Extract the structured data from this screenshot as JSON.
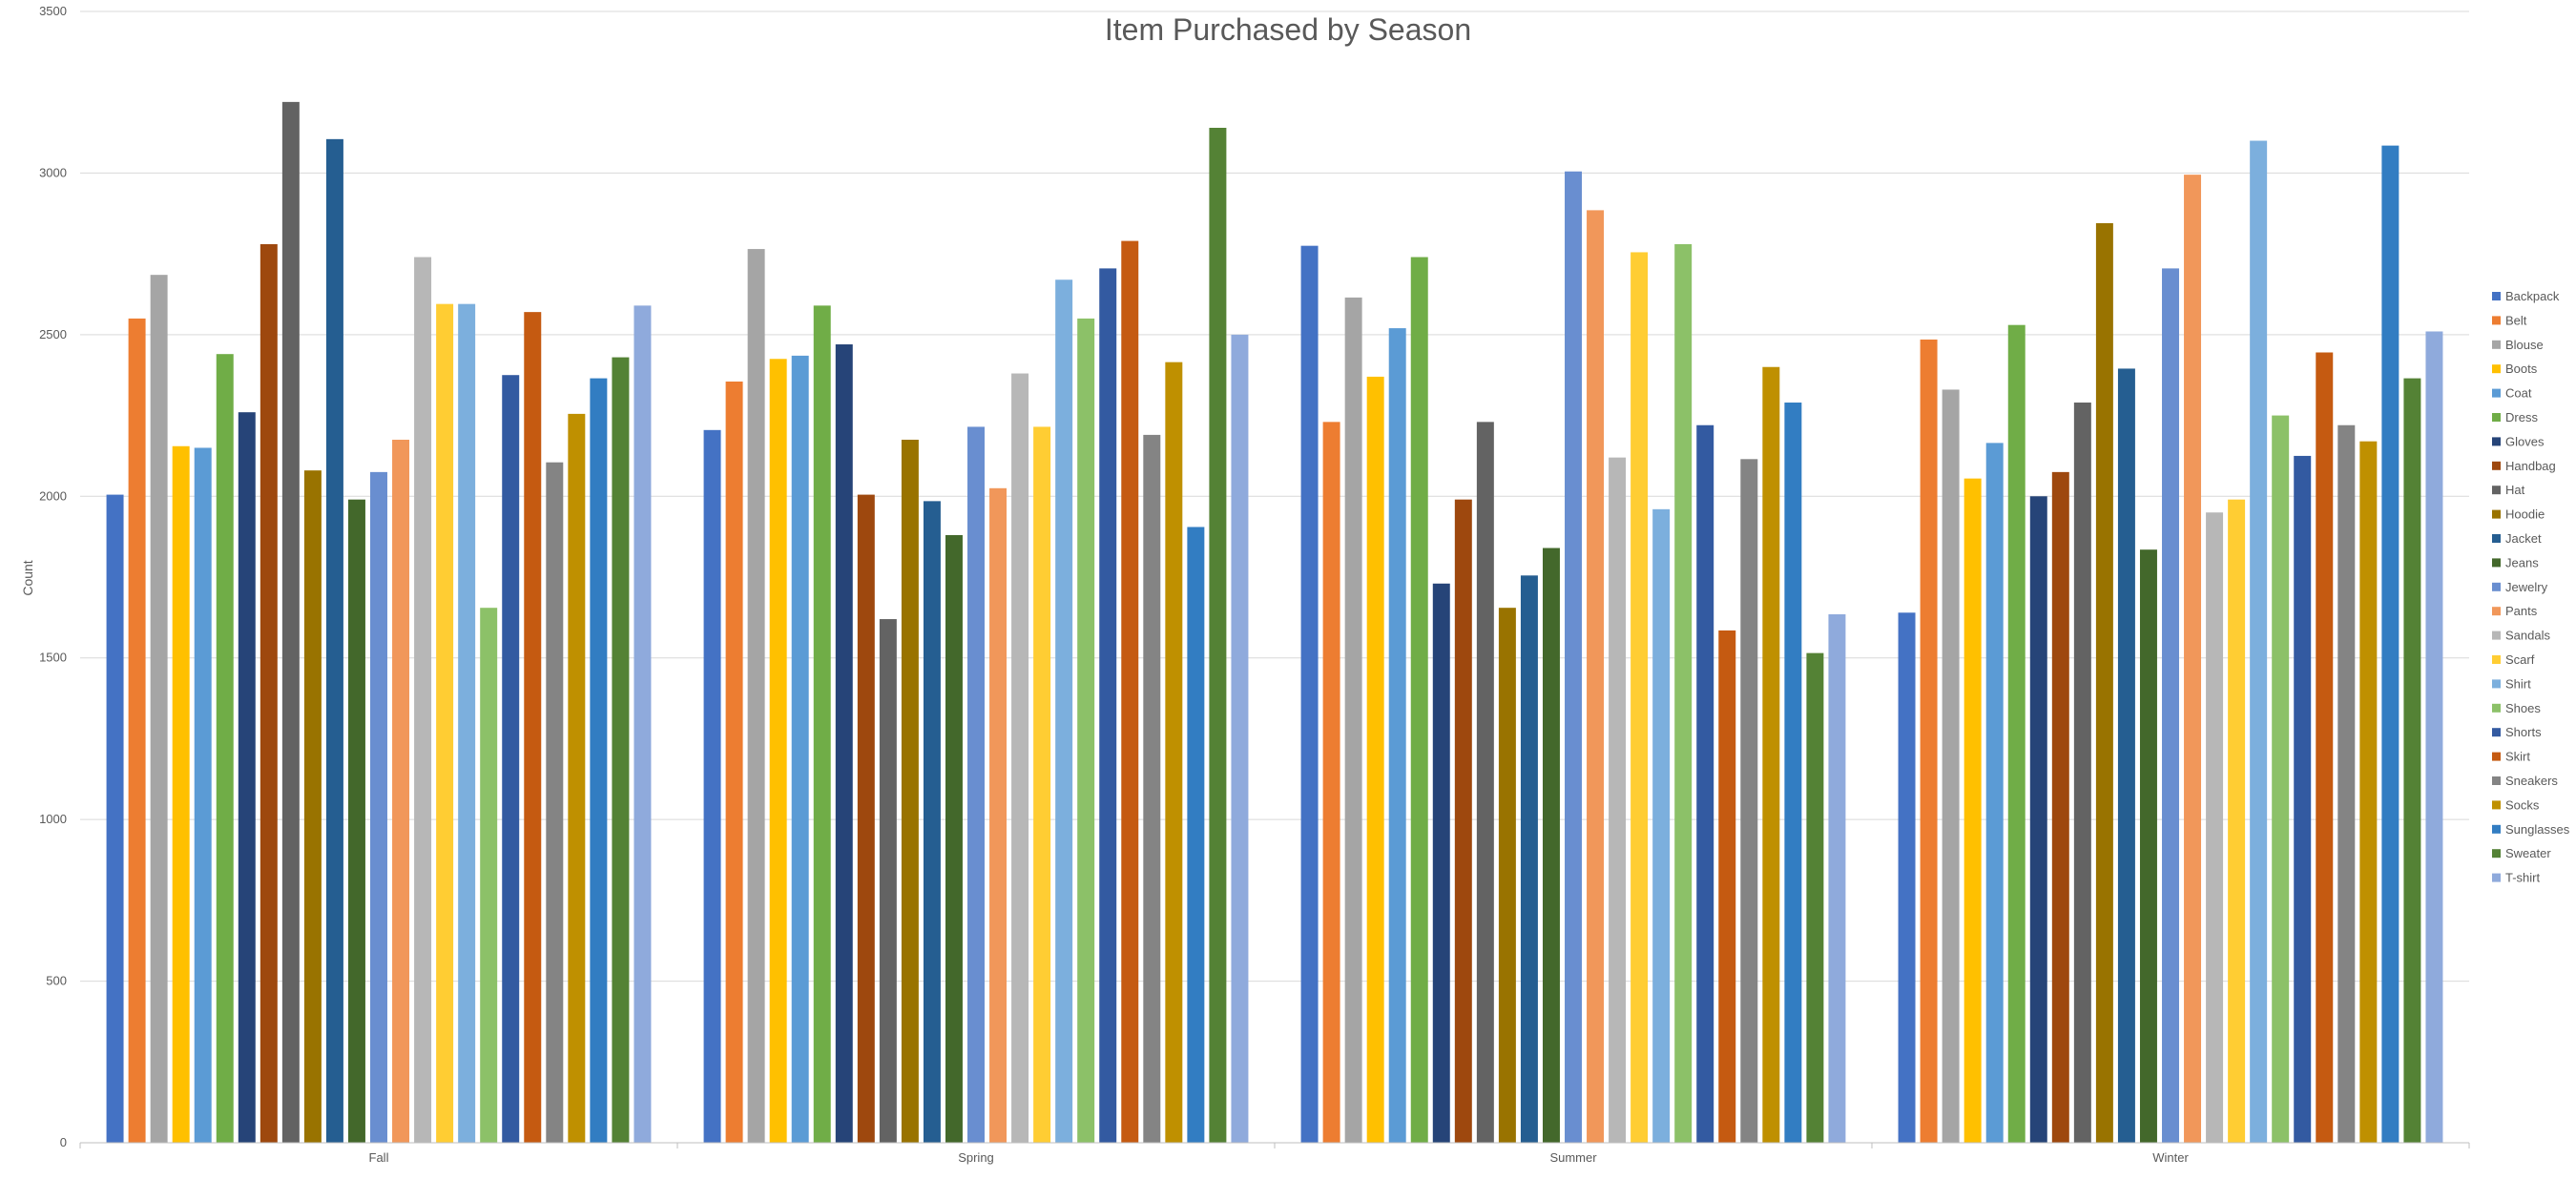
{
  "chart_data": {
    "type": "bar",
    "title": "Item Purchased by Season",
    "xlabel": "",
    "ylabel": "Count",
    "ylim": [
      0,
      3500
    ],
    "yticks": [
      0,
      500,
      1000,
      1500,
      2000,
      2500,
      3000,
      3500
    ],
    "grid": true,
    "legend_position": "right",
    "categories": [
      "Fall",
      "Spring",
      "Summer",
      "Winter"
    ],
    "series": [
      {
        "name": "Backpack",
        "color": "#4472C4",
        "values": [
          2005,
          2205,
          2775,
          1640
        ]
      },
      {
        "name": "Belt",
        "color": "#ED7D31",
        "values": [
          2550,
          2355,
          2230,
          2485
        ]
      },
      {
        "name": "Blouse",
        "color": "#A5A5A5",
        "values": [
          2685,
          2765,
          2615,
          2330
        ]
      },
      {
        "name": "Boots",
        "color": "#FFC000",
        "values": [
          2155,
          2425,
          2370,
          2055
        ]
      },
      {
        "name": "Coat",
        "color": "#5B9BD5",
        "values": [
          2150,
          2435,
          2520,
          2165
        ]
      },
      {
        "name": "Dress",
        "color": "#70AD47",
        "values": [
          2440,
          2590,
          2740,
          2530
        ]
      },
      {
        "name": "Gloves",
        "color": "#264478",
        "values": [
          2260,
          2470,
          1730,
          2000
        ]
      },
      {
        "name": "Handbag",
        "color": "#9E480E",
        "values": [
          2780,
          2005,
          1990,
          2075
        ]
      },
      {
        "name": "Hat",
        "color": "#636363",
        "values": [
          3220,
          1620,
          2230,
          2290
        ]
      },
      {
        "name": "Hoodie",
        "color": "#997300",
        "values": [
          2080,
          2175,
          1655,
          2845
        ]
      },
      {
        "name": "Jacket",
        "color": "#255E91",
        "values": [
          3105,
          1985,
          1755,
          2395
        ]
      },
      {
        "name": "Jeans",
        "color": "#43682B",
        "values": [
          1990,
          1880,
          1840,
          1835
        ]
      },
      {
        "name": "Jewelry",
        "color": "#698ED0",
        "values": [
          2075,
          2215,
          3005,
          2705
        ]
      },
      {
        "name": "Pants",
        "color": "#F1975A",
        "values": [
          2175,
          2025,
          2885,
          2995
        ]
      },
      {
        "name": "Sandals",
        "color": "#B7B7B7",
        "values": [
          2740,
          2380,
          2120,
          1950
        ]
      },
      {
        "name": "Scarf",
        "color": "#FFCD33",
        "values": [
          2595,
          2215,
          2755,
          1990
        ]
      },
      {
        "name": "Shirt",
        "color": "#7CAFDD",
        "values": [
          2595,
          2670,
          1960,
          3100
        ]
      },
      {
        "name": "Shoes",
        "color": "#8CC168",
        "values": [
          1655,
          2550,
          2780,
          2250
        ]
      },
      {
        "name": "Shorts",
        "color": "#335AA1",
        "values": [
          2375,
          2705,
          2220,
          2125
        ]
      },
      {
        "name": "Skirt",
        "color": "#C55A11",
        "values": [
          2570,
          2790,
          1585,
          2445
        ]
      },
      {
        "name": "Sneakers",
        "color": "#848484",
        "values": [
          2105,
          2190,
          2115,
          2220
        ]
      },
      {
        "name": "Socks",
        "color": "#BF9000",
        "values": [
          2255,
          2415,
          2400,
          2170
        ]
      },
      {
        "name": "Sunglasses",
        "color": "#327DC2",
        "values": [
          2365,
          1905,
          2290,
          3085
        ]
      },
      {
        "name": "Sweater",
        "color": "#548235",
        "values": [
          2430,
          3140,
          1515,
          2365
        ]
      },
      {
        "name": "T-shirt",
        "color": "#8FAADC",
        "values": [
          2590,
          2500,
          1635,
          2510
        ]
      }
    ]
  }
}
